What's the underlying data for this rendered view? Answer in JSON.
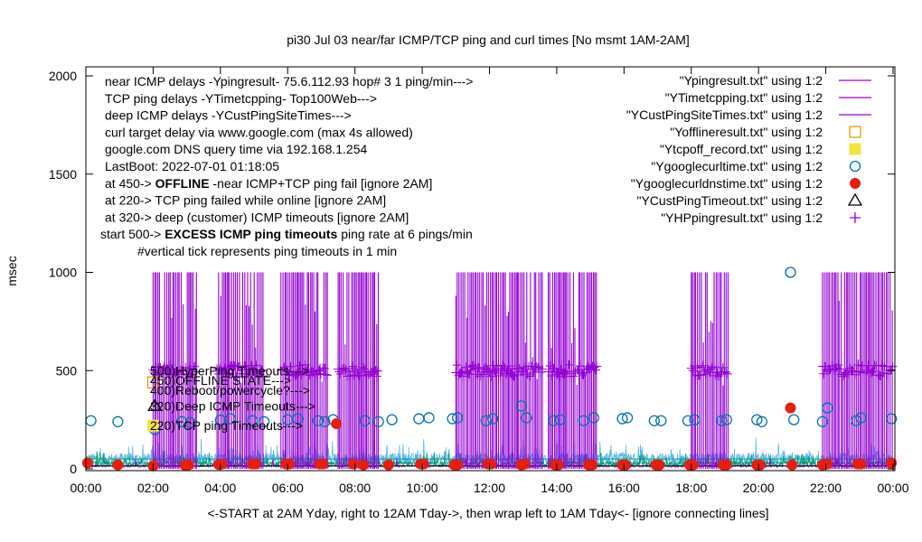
{
  "chart_data": {
    "type": "scatter",
    "title": "pi30 Jul 03  near/far ICMP/TCP ping and curl times [No msmt 1AM-2AM]",
    "xlabel": "<-START at 2AM Yday, right to 12AM Tday->, then wrap left to 1AM Tday<- [ignore connecting lines]",
    "ylabel": "msec",
    "xlim": [
      0,
      24
    ],
    "ylim": [
      0,
      2050
    ],
    "x_ticks": [
      0,
      2,
      4,
      6,
      8,
      10,
      12,
      14,
      16,
      18,
      20,
      22,
      24
    ],
    "x_tick_labels": [
      "00:00",
      "02:00",
      "04:00",
      "06:00",
      "08:00",
      "10:00",
      "12:00",
      "14:00",
      "16:00",
      "18:00",
      "20:00",
      "22:00",
      "00:00"
    ],
    "y_ticks": [
      0,
      500,
      1000,
      1500,
      2000
    ],
    "y_tick_labels": [
      "0",
      "500",
      "1000",
      "1500",
      "2000"
    ],
    "info_lines": [
      "near ICMP delays -Ypingresult- 75.6.112.93 hop# 3 1 ping/min--->",
      "TCP ping delays -YTimetcpping- Top100Web--->",
      "deep ICMP delays -YCustPingSiteTimes--->",
      "curl target delay via www.google.com (max 4s allowed)",
      "google.com DNS query time via 192.168.1.254",
      "LastBoot: 2022-07-01 01:18:05"
    ],
    "threshold_lines": [
      {
        "pre": "at 450-> ",
        "bold": "OFFLINE",
        "post": " -near ICMP+TCP ping fail [ignore 2AM]"
      },
      {
        "pre": "at 220-> TCP ping failed while online [ignore 2AM]",
        "bold": "",
        "post": ""
      },
      {
        "pre": "at 320-> deep (customer) ICMP timeouts [ignore 2AM]",
        "bold": "",
        "post": ""
      },
      {
        "pre": "start 500-> ",
        "bold": "EXCESS ICMP ping timeouts",
        "post": "  ping rate at 6 pings/min"
      }
    ],
    "note": "#vertical tick represents ping timeouts in 1 min",
    "side_labels": [
      "500)HyperPing Timeouts--->",
      "450)OFFLINE STATE--->",
      "400)Reboot/powercycle?--->",
      "320)Deep ICMP Timeouts--->",
      "220)TCP ping Timeouts--->"
    ],
    "side_label_values": [
      500,
      450,
      400,
      320,
      220
    ],
    "legend": [
      {
        "label": "\"Ypingresult.txt\" using 1:2",
        "style": "line",
        "color": "#9400d3"
      },
      {
        "label": "\"YTimetcpping.txt\" using 1:2",
        "style": "line",
        "color": "#009e73"
      },
      {
        "label": "\"YCustPingSiteTimes.txt\" using 1:2",
        "style": "line",
        "color": "#56b4e9"
      },
      {
        "label": "\"Yofflineresult.txt\" using 1:2",
        "style": "open-square",
        "color": "#e69f00"
      },
      {
        "label": "\"Ytcpoff_record.txt\" using 1:2",
        "style": "filled-square",
        "color": "#f0e442"
      },
      {
        "label": "\"Ygooglecurltime.txt\" using 1:2",
        "style": "open-circle",
        "color": "#0072b2"
      },
      {
        "label": "\"Ygooglecurldnstime.txt\" using 1:2",
        "style": "filled-circle",
        "color": "#e51e10"
      },
      {
        "label": "\"YCustPingTimeout.txt\" using 1:2",
        "style": "open-triangle",
        "color": "#000000"
      },
      {
        "label": "\"YHPpingresult.txt\" using 1:2",
        "style": "plus",
        "color": "#9400d3"
      }
    ],
    "timeout_spike_blocks": [
      {
        "start": 2.0,
        "end": 3.3
      },
      {
        "start": 3.9,
        "end": 5.3
      },
      {
        "start": 5.8,
        "end": 7.2
      },
      {
        "start": 7.5,
        "end": 8.7
      },
      {
        "start": 11.0,
        "end": 13.6
      },
      {
        "start": 13.75,
        "end": 15.2
      },
      {
        "start": 18.0,
        "end": 19.1
      },
      {
        "start": 21.9,
        "end": 24.0
      }
    ],
    "timeout_spike_value": 1000,
    "hyperping_value": 500,
    "series": [
      {
        "name": "Ygooglecurltime.txt",
        "marker": "open-circle",
        "x": [
          0.15,
          0.95,
          2.05,
          2.85,
          3.1,
          4.0,
          4.3,
          4.95,
          5.3,
          6.0,
          6.3,
          6.9,
          7.1,
          7.35,
          8.3,
          8.7,
          9.1,
          9.9,
          10.2,
          10.9,
          11.05,
          11.9,
          12.1,
          12.95,
          13.1,
          13.9,
          14.1,
          14.8,
          15.1,
          15.95,
          16.1,
          16.9,
          17.1,
          17.9,
          18.1,
          18.9,
          19.05,
          19.95,
          20.1,
          20.95,
          21.05,
          21.9,
          22.05,
          22.9,
          23.05,
          23.95
        ],
        "y": [
          245,
          240,
          200,
          240,
          235,
          248,
          255,
          245,
          240,
          250,
          255,
          245,
          240,
          250,
          245,
          240,
          250,
          255,
          260,
          255,
          260,
          245,
          255,
          320,
          260,
          245,
          250,
          245,
          260,
          255,
          260,
          245,
          245,
          245,
          250,
          245,
          250,
          250,
          240,
          1000,
          250,
          240,
          310,
          245,
          260,
          255
        ]
      },
      {
        "name": "Ygooglecurldnstime.txt",
        "marker": "filled-circle",
        "x": [
          0.05,
          0.95,
          2.0,
          2.95,
          3.05,
          3.95,
          4.05,
          4.95,
          5.05,
          5.95,
          6.05,
          6.95,
          7.05,
          7.45,
          7.95,
          8.25,
          9.0,
          9.95,
          10.05,
          10.95,
          11.05,
          11.95,
          12.05,
          12.95,
          13.05,
          13.95,
          14.05,
          14.95,
          15.05,
          15.95,
          16.05,
          16.95,
          17.05,
          17.95,
          18.05,
          18.95,
          19.05,
          19.95,
          20.05,
          20.95,
          21.0,
          21.9,
          22.05,
          22.95,
          23.05,
          23.95
        ],
        "y": [
          30,
          20,
          15,
          18,
          20,
          22,
          25,
          25,
          25,
          25,
          25,
          25,
          25,
          230,
          25,
          20,
          20,
          25,
          25,
          20,
          20,
          25,
          25,
          20,
          25,
          20,
          20,
          20,
          20,
          20,
          20,
          20,
          20,
          20,
          20,
          20,
          20,
          20,
          20,
          310,
          20,
          20,
          25,
          25,
          25,
          30
        ]
      },
      {
        "name": "Ytcpoff_record.txt",
        "marker": "filled-square",
        "x": [
          2.0
        ],
        "y": [
          220
        ]
      },
      {
        "name": "Yofflineresult.txt",
        "marker": "open-square",
        "x": [
          2.0
        ],
        "y": [
          440
        ]
      },
      {
        "name": "YCustPingTimeout.txt",
        "marker": "open-triangle",
        "x": [
          2.05
        ],
        "y": [
          320
        ]
      }
    ]
  }
}
